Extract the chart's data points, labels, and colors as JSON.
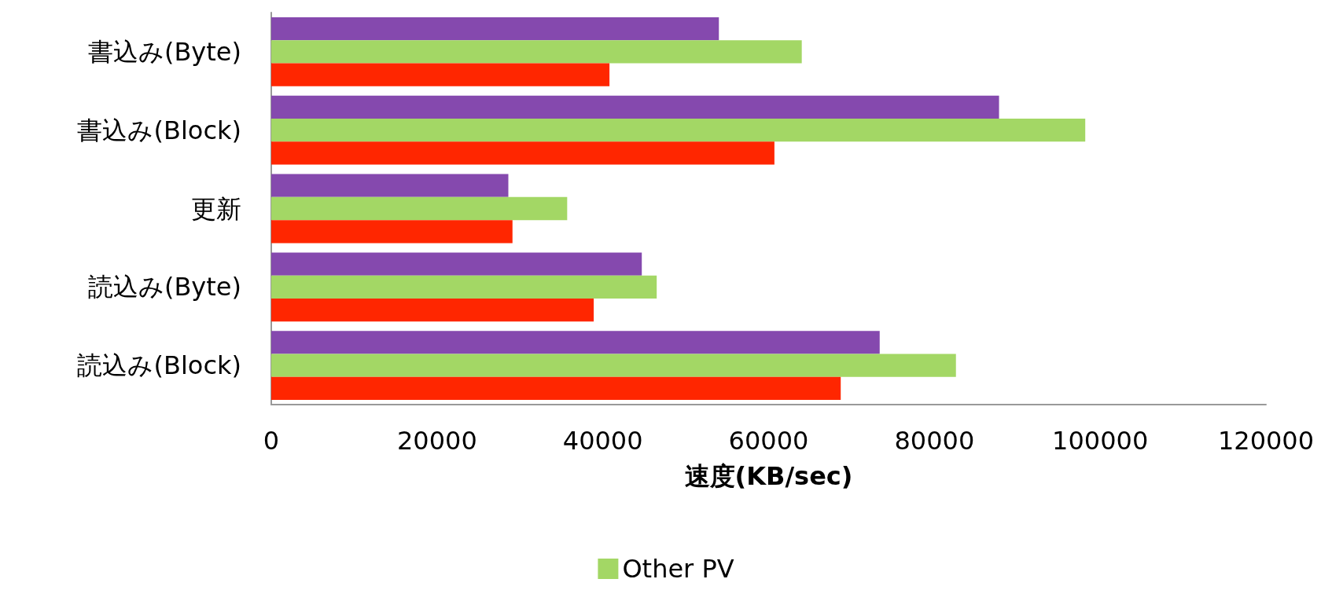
{
  "chart_data": {
    "type": "bar",
    "orientation": "horizontal",
    "xlabel": "速度(KB/sec)",
    "categories": [
      "書込み(Byte)",
      "書込み(Block)",
      "更新",
      "読込み(Byte)",
      "読込み(Block)"
    ],
    "series": [
      {
        "color": "#8549ae",
        "values": [
          54000,
          87800,
          28600,
          44700,
          73400
        ]
      },
      {
        "name": "Other PV",
        "color": "#a3d765",
        "values": [
          64000,
          98200,
          35700,
          46500,
          82600
        ]
      },
      {
        "color": "#ff2600",
        "values": [
          40800,
          60700,
          29100,
          38900,
          68700
        ]
      }
    ],
    "xlim": [
      0,
      120000
    ],
    "xticks": [
      0,
      20000,
      40000,
      60000,
      80000,
      100000,
      120000
    ],
    "grid": false,
    "legend": "bottom"
  }
}
